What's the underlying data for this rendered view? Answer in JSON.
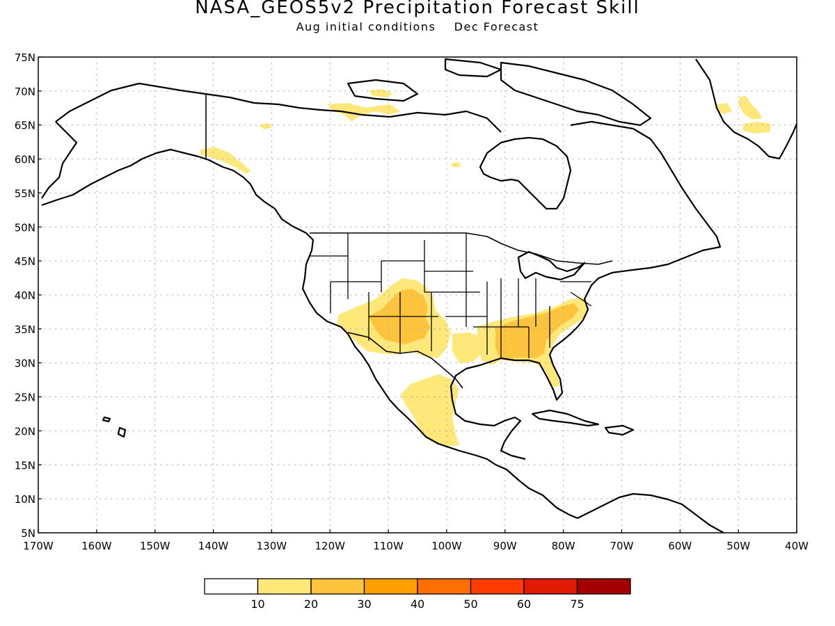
{
  "title": "NASA_GEOS5v2 Precipitation Forecast Skill",
  "subtitle": "Aug initial conditions    Dec Forecast",
  "map": {
    "projection": "equirectangular",
    "lon_range": [
      -170,
      -40
    ],
    "lat_range": [
      5,
      75
    ],
    "grid": "dotted",
    "lat_ticks": [
      "75N",
      "70N",
      "65N",
      "60N",
      "55N",
      "50N",
      "45N",
      "40N",
      "35N",
      "30N",
      "25N",
      "20N",
      "15N",
      "10N",
      "5N"
    ],
    "lon_ticks": [
      "170W",
      "160W",
      "150W",
      "140W",
      "130W",
      "120W",
      "110W",
      "100W",
      "90W",
      "80W",
      "70W",
      "60W",
      "50W",
      "40W"
    ]
  },
  "colorbar": {
    "colors": [
      "#ffffff",
      "#ffe87a",
      "#ffc43d",
      "#ffa000",
      "#ff6e00",
      "#ff3d00",
      "#e01a00",
      "#a50000"
    ],
    "labels": [
      "10",
      "20",
      "30",
      "40",
      "50",
      "60",
      "75"
    ]
  },
  "skill_regions": [
    {
      "name": "southwest-us",
      "level": 2,
      "color": "#ffc43d"
    },
    {
      "name": "southeast-us",
      "level": 2,
      "color": "#ffc43d"
    },
    {
      "name": "mexico",
      "level": 1,
      "color": "#ffe87a"
    },
    {
      "name": "greenland",
      "level": 1,
      "color": "#ffe87a"
    },
    {
      "name": "arctic-canada",
      "level": 1,
      "color": "#ffe87a"
    },
    {
      "name": "alaska-panhandle",
      "level": 1,
      "color": "#ffe87a"
    }
  ]
}
